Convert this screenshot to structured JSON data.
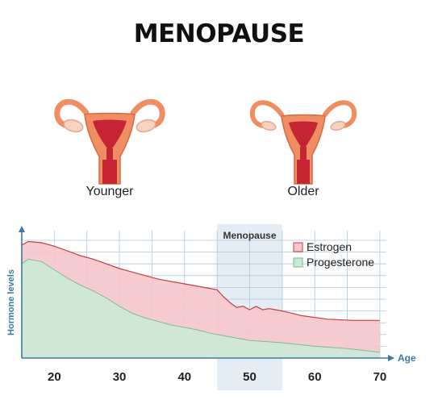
{
  "title": "MENOPAUSE",
  "illustrations": {
    "younger_label": "Younger",
    "older_label": "Older"
  },
  "colors": {
    "estrogen_fill": "#f6c7cb",
    "estrogen_line": "#c43d45",
    "progesterone_fill": "#cfe8d5",
    "progesterone_line": "#7db993",
    "menopause_band": "#e3edf3",
    "grid": "#a9c9dd",
    "axis": "#3d79a5",
    "organ_outer": "#ef8e63",
    "organ_inner": "#c42433",
    "organ_skin": "#f6d2c0"
  },
  "chart_data": {
    "type": "area",
    "title": "",
    "xlabel": "Age",
    "ylabel": "Hormone levels",
    "xlim": [
      15,
      71
    ],
    "ylim": [
      0,
      100
    ],
    "x_ticks": [
      20,
      30,
      40,
      50,
      60,
      70
    ],
    "grid": true,
    "legend_position": "top-right",
    "band": {
      "label": "Menopause",
      "x_range": [
        45,
        55
      ]
    },
    "series": [
      {
        "name": "Estrogen",
        "x": [
          15,
          16,
          18,
          20,
          22,
          24,
          26,
          28,
          30,
          32,
          34,
          36,
          38,
          40,
          42,
          44,
          45,
          46,
          47,
          48,
          49,
          50,
          51,
          52,
          53,
          54,
          55,
          58,
          62,
          66,
          70
        ],
        "y": [
          96,
          99,
          98,
          95,
          91,
          87,
          84,
          80,
          76,
          73,
          70,
          67,
          65,
          63,
          61,
          59,
          58,
          52,
          47,
          43,
          44,
          41,
          44,
          41,
          42,
          41,
          40,
          36,
          33,
          32,
          32
        ]
      },
      {
        "name": "Progesterone",
        "x": [
          15,
          16,
          18,
          20,
          22,
          24,
          26,
          28,
          30,
          32,
          34,
          36,
          38,
          40,
          42,
          44,
          46,
          48,
          50,
          55,
          60,
          65,
          70
        ],
        "y": [
          80,
          84,
          82,
          75,
          68,
          62,
          57,
          51,
          44,
          38,
          34,
          31,
          28,
          26,
          24,
          21,
          19,
          17,
          15,
          13,
          10,
          8,
          5
        ]
      }
    ]
  }
}
